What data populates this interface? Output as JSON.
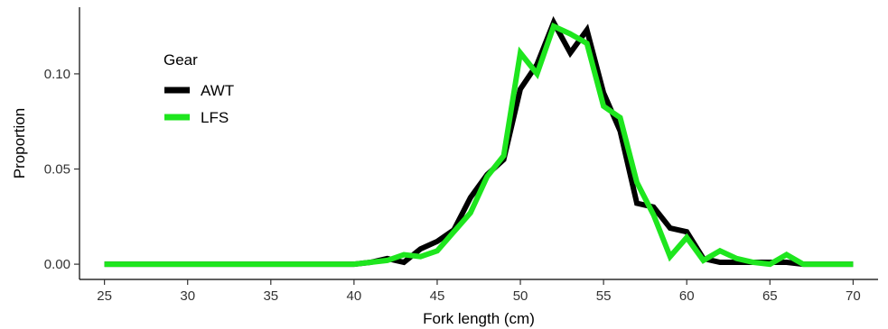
{
  "chart_data": {
    "type": "line",
    "xlabel": "Fork length (cm)",
    "ylabel": "Proportion",
    "xlim": [
      23.5,
      71.5
    ],
    "ylim": [
      -0.008,
      0.135
    ],
    "x_ticks": [
      25,
      30,
      35,
      40,
      45,
      50,
      55,
      60,
      65,
      70
    ],
    "x_tick_labels": [
      "25",
      "30",
      "35",
      "40",
      "45",
      "50",
      "55",
      "60",
      "65",
      "70"
    ],
    "y_ticks": [
      0.0,
      0.05,
      0.1
    ],
    "y_tick_labels": [
      "0.00",
      "0.05",
      "0.10"
    ],
    "grid": false,
    "legend": {
      "title": "Gear",
      "position": "top-left"
    },
    "series": [
      {
        "name": "AWT",
        "color": "#000000",
        "x": [
          25,
          26,
          27,
          28,
          29,
          30,
          31,
          32,
          33,
          34,
          35,
          36,
          37,
          38,
          39,
          40,
          41,
          42,
          43,
          44,
          45,
          46,
          47,
          48,
          49,
          50,
          51,
          52,
          53,
          54,
          55,
          56,
          57,
          58,
          59,
          60,
          61,
          62,
          63,
          64,
          65,
          66,
          67,
          68,
          69,
          70
        ],
        "y": [
          0,
          0,
          0,
          0,
          0,
          0,
          0,
          0,
          0,
          0,
          0,
          0,
          0,
          0,
          0,
          0,
          0.001,
          0.003,
          0.001,
          0.008,
          0.012,
          0.018,
          0.035,
          0.047,
          0.055,
          0.092,
          0.105,
          0.127,
          0.111,
          0.123,
          0.09,
          0.07,
          0.032,
          0.03,
          0.019,
          0.017,
          0.003,
          0.001,
          0.001,
          0.001,
          0.001,
          0.001,
          0,
          0,
          0,
          0
        ]
      },
      {
        "name": "LFS",
        "color": "#1ee61e",
        "x": [
          25,
          26,
          27,
          28,
          29,
          30,
          31,
          32,
          33,
          34,
          35,
          36,
          37,
          38,
          39,
          40,
          41,
          42,
          43,
          44,
          45,
          46,
          47,
          48,
          49,
          50,
          51,
          52,
          53,
          54,
          55,
          56,
          57,
          58,
          59,
          60,
          61,
          62,
          63,
          64,
          65,
          66,
          67,
          68,
          69,
          70
        ],
        "y": [
          0,
          0,
          0,
          0,
          0,
          0,
          0,
          0,
          0,
          0,
          0,
          0,
          0,
          0,
          0,
          0,
          0.001,
          0.002,
          0.005,
          0.004,
          0.007,
          0.017,
          0.027,
          0.046,
          0.057,
          0.111,
          0.1,
          0.125,
          0.121,
          0.116,
          0.083,
          0.077,
          0.043,
          0.026,
          0.004,
          0.014,
          0.002,
          0.007,
          0.003,
          0.001,
          0,
          0.005,
          0,
          0,
          0,
          0
        ]
      }
    ]
  }
}
